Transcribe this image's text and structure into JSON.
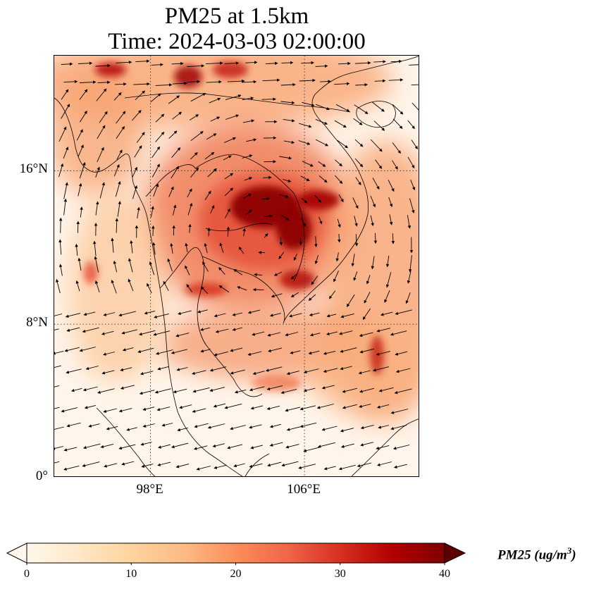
{
  "title": {
    "line1": "PM25 at 1.5km",
    "line2": "Time: 2024-03-03 02:00:00"
  },
  "map": {
    "lon_range": [
      93,
      112
    ],
    "lat_range": [
      0,
      22
    ],
    "field": "PM25",
    "colormap": "OrRd",
    "gridlines": "dotted",
    "lat_ticks": [
      {
        "value": 0,
        "label": "0°"
      },
      {
        "value": 8,
        "label": "8°N"
      },
      {
        "value": 16,
        "label": "16°N"
      }
    ],
    "lon_ticks": [
      {
        "value": 98,
        "label": "98°E"
      },
      {
        "value": 106,
        "label": "106°E"
      }
    ],
    "overlays": [
      "coastlines",
      "country-borders",
      "wind-vectors"
    ]
  },
  "colorbar": {
    "min": 0,
    "max": 40,
    "extend": "both",
    "ticks": [
      "0",
      "10",
      "20",
      "30",
      "40"
    ],
    "label_prefix": "PM25 (ug/m",
    "label_exp": "3",
    "label_suffix": ")",
    "colors": [
      "#fff7ec",
      "#fee8c8",
      "#fdd49e",
      "#fdbb84",
      "#fc8d59",
      "#ef6548",
      "#d7301f",
      "#b30000",
      "#7f0000"
    ]
  }
}
